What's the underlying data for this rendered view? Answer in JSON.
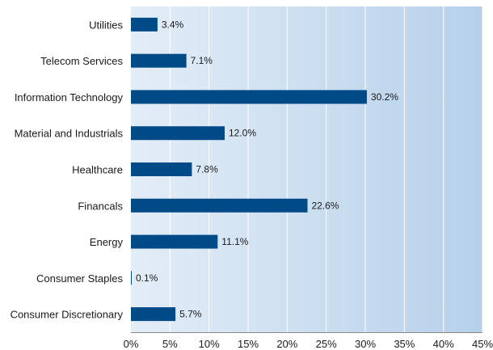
{
  "chart_data": {
    "type": "bar",
    "orientation": "horizontal",
    "title": "",
    "xlabel": "",
    "ylabel": "",
    "categories": [
      "Utilities",
      "Telecom Services",
      "Information Technology",
      "Material and Industrials",
      "Healthcare",
      "Financals",
      "Energy",
      "Consumer Staples",
      "Consumer Discretionary"
    ],
    "values": [
      3.4,
      7.1,
      30.2,
      12.0,
      7.8,
      22.6,
      11.1,
      0.1,
      5.7
    ],
    "value_labels": [
      "3.4%",
      "7.1%",
      "30.2%",
      "12.0%",
      "7.8%",
      "22.6%",
      "11.1%",
      "0.1%",
      "5.7%"
    ],
    "xlim": [
      0,
      45
    ],
    "x_ticks": [
      0,
      5,
      10,
      15,
      20,
      25,
      30,
      35,
      40,
      45
    ],
    "x_tick_labels": [
      "0%",
      "5%",
      "10%",
      "15%",
      "20%",
      "25%",
      "30%",
      "35%",
      "40%",
      "45%"
    ],
    "grid": true,
    "legend": "none",
    "colors": {
      "bar": "#004b87",
      "background_left": "#e3edf8",
      "background_right": "#b6d0ea",
      "grid": "#ffffff",
      "axis": "#8a8a8a"
    }
  }
}
